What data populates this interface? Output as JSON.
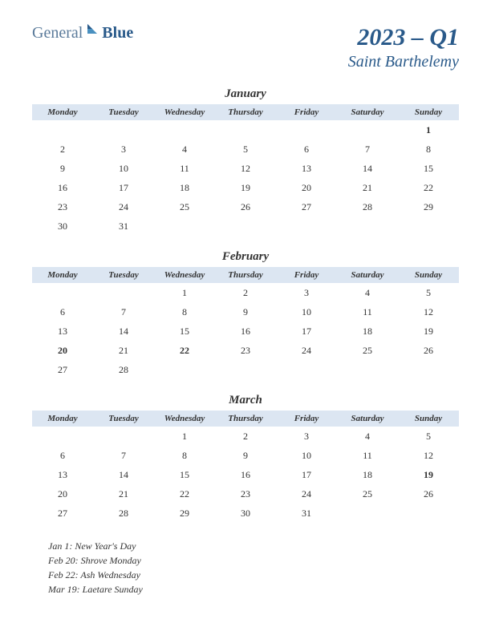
{
  "logo": {
    "text1": "General",
    "text2": "Blue"
  },
  "quarter": "2023 – Q1",
  "region": "Saint Barthelemy",
  "header_bg": "#dce6f2",
  "holiday_color": "#c00000",
  "title_color": "#2a5a8a",
  "day_headers": [
    "Monday",
    "Tuesday",
    "Wednesday",
    "Thursday",
    "Friday",
    "Saturday",
    "Sunday"
  ],
  "months": [
    {
      "name": "January",
      "weeks": [
        [
          "",
          "",
          "",
          "",
          "",
          "",
          "1"
        ],
        [
          "2",
          "3",
          "4",
          "5",
          "6",
          "7",
          "8"
        ],
        [
          "9",
          "10",
          "11",
          "12",
          "13",
          "14",
          "15"
        ],
        [
          "16",
          "17",
          "18",
          "19",
          "20",
          "21",
          "22"
        ],
        [
          "23",
          "24",
          "25",
          "26",
          "27",
          "28",
          "29"
        ],
        [
          "30",
          "31",
          "",
          "",
          "",
          "",
          ""
        ]
      ],
      "holidays": [
        "1"
      ]
    },
    {
      "name": "February",
      "weeks": [
        [
          "",
          "",
          "1",
          "2",
          "3",
          "4",
          "5"
        ],
        [
          "6",
          "7",
          "8",
          "9",
          "10",
          "11",
          "12"
        ],
        [
          "13",
          "14",
          "15",
          "16",
          "17",
          "18",
          "19"
        ],
        [
          "20",
          "21",
          "22",
          "23",
          "24",
          "25",
          "26"
        ],
        [
          "27",
          "28",
          "",
          "",
          "",
          "",
          ""
        ]
      ],
      "holidays": [
        "20",
        "22"
      ]
    },
    {
      "name": "March",
      "weeks": [
        [
          "",
          "",
          "1",
          "2",
          "3",
          "4",
          "5"
        ],
        [
          "6",
          "7",
          "8",
          "9",
          "10",
          "11",
          "12"
        ],
        [
          "13",
          "14",
          "15",
          "16",
          "17",
          "18",
          "19"
        ],
        [
          "20",
          "21",
          "22",
          "23",
          "24",
          "25",
          "26"
        ],
        [
          "27",
          "28",
          "29",
          "30",
          "31",
          "",
          ""
        ]
      ],
      "holidays": [
        "19"
      ]
    }
  ],
  "holiday_notes": [
    "Jan 1: New Year's Day",
    "Feb 20: Shrove Monday",
    "Feb 22: Ash Wednesday",
    "Mar 19: Laetare Sunday"
  ]
}
